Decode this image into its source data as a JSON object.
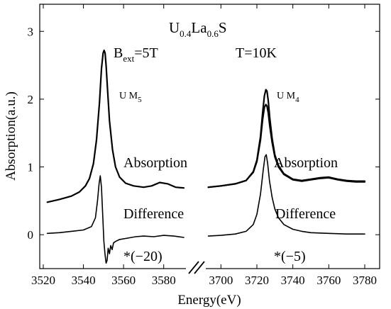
{
  "chart_data": {
    "type": "line",
    "title": {
      "base": "U",
      "s1": "0.4",
      "mid": "La",
      "s2": "0.6",
      "end": "S"
    },
    "xlabel": "Energy(eV)",
    "ylabel": "Absorption(a.u.)",
    "ylim": [
      -0.5,
      3.4
    ],
    "yticks": [
      0,
      1,
      2,
      3
    ],
    "x_segments": [
      {
        "xlim": [
          3520,
          3590
        ],
        "ticks": [
          3520,
          3540,
          3560,
          3580
        ]
      },
      {
        "xlim": [
          3690,
          3780
        ],
        "ticks": [
          3700,
          3720,
          3740,
          3760,
          3780
        ]
      }
    ],
    "annotations": {
      "bext": {
        "base": "B",
        "sub": "ext",
        "rest": "=5T"
      },
      "temp": "T=10K",
      "um5": {
        "base": "U M",
        "sub": "5"
      },
      "um4": {
        "base": "U M",
        "sub": "4"
      },
      "absorption_left": "Absorption",
      "absorption_right": "Absorption",
      "difference_left": "Difference",
      "difference_right": "Difference",
      "factor_left": "*(−20)",
      "factor_right": "*(−5)"
    },
    "series": [
      {
        "segment": 0,
        "x": [
          3522,
          3528,
          3534,
          3538,
          3541,
          3543,
          3545,
          3546.5,
          3548,
          3549,
          3549.8,
          3550.3,
          3550.8,
          3551.3,
          3552,
          3553,
          3554.5,
          3556,
          3558,
          3561,
          3565,
          3570,
          3574,
          3578,
          3582,
          3586,
          3590
        ],
        "y": [
          0.48,
          0.52,
          0.57,
          0.63,
          0.72,
          0.83,
          1.05,
          1.4,
          1.95,
          2.45,
          2.68,
          2.72,
          2.68,
          2.5,
          2.15,
          1.68,
          1.25,
          1.0,
          0.85,
          0.76,
          0.72,
          0.7,
          0.72,
          0.77,
          0.75,
          0.7,
          0.69
        ]
      },
      {
        "segment": 0,
        "x": [
          3522,
          3528,
          3534,
          3540,
          3544,
          3546,
          3547,
          3547.8,
          3548.4,
          3549,
          3549.6,
          3550.2,
          3550.8,
          3551.3,
          3551.8,
          3552.3,
          3553,
          3553.6,
          3554.3,
          3555,
          3556,
          3558,
          3562,
          3566,
          3570,
          3575,
          3580,
          3585,
          3590
        ],
        "y": [
          0.02,
          0.03,
          0.05,
          0.07,
          0.12,
          0.25,
          0.5,
          0.75,
          0.87,
          0.7,
          0.3,
          -0.1,
          -0.3,
          -0.42,
          -0.38,
          -0.2,
          -0.28,
          -0.16,
          -0.22,
          -0.12,
          -0.1,
          -0.07,
          -0.05,
          -0.03,
          -0.02,
          -0.03,
          -0.01,
          -0.02,
          -0.04
        ]
      },
      {
        "segment": 1,
        "x": [
          3693,
          3700,
          3708,
          3714,
          3718,
          3720,
          3722,
          3723.2,
          3724.2,
          3725,
          3725.6,
          3726.3,
          3727.2,
          3728.5,
          3730,
          3732,
          3735,
          3740,
          3745,
          3750,
          3755,
          3760,
          3765,
          3770,
          3775,
          3780
        ],
        "y": [
          0.7,
          0.72,
          0.75,
          0.8,
          0.93,
          1.1,
          1.45,
          1.8,
          2.05,
          2.14,
          2.12,
          1.98,
          1.72,
          1.42,
          1.18,
          1.02,
          0.9,
          0.82,
          0.8,
          0.82,
          0.84,
          0.85,
          0.82,
          0.8,
          0.79,
          0.79
        ]
      },
      {
        "segment": 1,
        "x": [
          3693,
          3700,
          3708,
          3714,
          3718,
          3720,
          3722,
          3723.2,
          3724.2,
          3725,
          3725.6,
          3726.3,
          3727.2,
          3728.5,
          3730,
          3732,
          3735,
          3740,
          3745,
          3750,
          3755,
          3760,
          3765,
          3770,
          3775,
          3780
        ],
        "y": [
          0.7,
          0.72,
          0.75,
          0.8,
          0.92,
          1.08,
          1.4,
          1.7,
          1.88,
          1.92,
          1.9,
          1.8,
          1.6,
          1.36,
          1.15,
          1.0,
          0.89,
          0.81,
          0.79,
          0.81,
          0.83,
          0.84,
          0.81,
          0.79,
          0.78,
          0.78
        ]
      },
      {
        "segment": 1,
        "x": [
          3693,
          3700,
          3708,
          3714,
          3718,
          3720,
          3722,
          3723.5,
          3724.5,
          3725.2,
          3726,
          3727,
          3728.5,
          3730,
          3732,
          3735,
          3740,
          3745,
          3750,
          3760,
          3770,
          3780
        ],
        "y": [
          -0.02,
          -0.01,
          0.01,
          0.05,
          0.15,
          0.3,
          0.6,
          0.95,
          1.15,
          1.18,
          1.05,
          0.8,
          0.55,
          0.38,
          0.25,
          0.15,
          0.08,
          0.05,
          0.03,
          0.02,
          0.01,
          0.01
        ]
      }
    ]
  }
}
